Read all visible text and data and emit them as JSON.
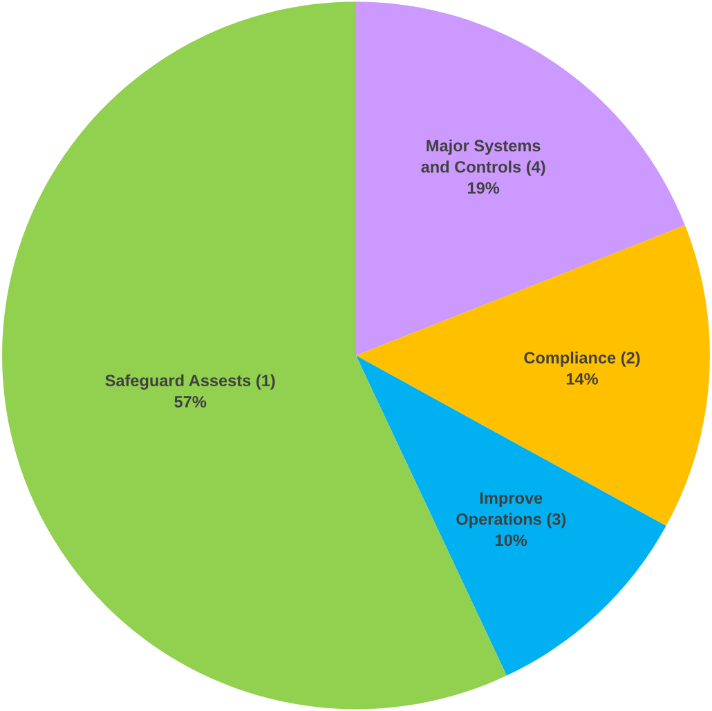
{
  "chart_data": {
    "type": "pie",
    "categories": [
      "Major Systems\nand Controls (4)",
      "Compliance (2)",
      "Improve\nOperations (3)",
      "Safeguard Assests (1)"
    ],
    "values": [
      19,
      14,
      10,
      57
    ],
    "value_labels": [
      "19%",
      "14%",
      "10%",
      "57%"
    ],
    "colors": [
      "#cc99ff",
      "#ffc000",
      "#00b0f0",
      "#92d050"
    ],
    "legend": false
  }
}
